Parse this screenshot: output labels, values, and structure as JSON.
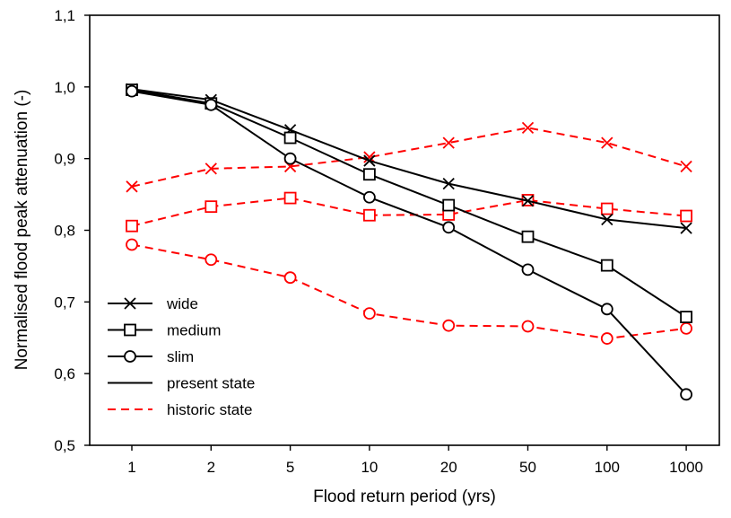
{
  "chart_data": {
    "type": "line",
    "xlabel": "Flood return period (yrs)",
    "ylabel": "Normalised flood peak attenuation (-)",
    "categories": [
      "1",
      "2",
      "5",
      "10",
      "20",
      "50",
      "100",
      "1000"
    ],
    "ylim": [
      0.5,
      1.1
    ],
    "yticks": [
      "0,5",
      "0,6",
      "0,7",
      "0,8",
      "0,9",
      "1,0",
      "1,1"
    ],
    "ytick_values": [
      0.5,
      0.6,
      0.7,
      0.8,
      0.9,
      1.0,
      1.1
    ],
    "grid": false,
    "legend_position": "bottom-left",
    "legend": [
      {
        "label": "wide",
        "marker": "x",
        "style": "marker"
      },
      {
        "label": "medium",
        "marker": "square",
        "style": "marker"
      },
      {
        "label": "slim",
        "marker": "circle",
        "style": "marker"
      },
      {
        "label": "present state",
        "marker": "none",
        "style": "solid"
      },
      {
        "label": "historic state",
        "marker": "none",
        "style": "dashed"
      }
    ],
    "colors": {
      "present": "#000000",
      "historic": "#ff0000"
    },
    "series": [
      {
        "width": "wide",
        "state": "present",
        "marker": "x",
        "values": [
          0.997,
          0.982,
          0.94,
          0.897,
          0.865,
          0.841,
          0.815,
          0.803
        ]
      },
      {
        "width": "medium",
        "state": "present",
        "marker": "square",
        "values": [
          0.996,
          0.977,
          0.929,
          0.878,
          0.835,
          0.791,
          0.751,
          0.679
        ]
      },
      {
        "width": "slim",
        "state": "present",
        "marker": "circle",
        "values": [
          0.994,
          0.975,
          0.9,
          0.846,
          0.804,
          0.745,
          0.69,
          0.571
        ]
      },
      {
        "width": "wide",
        "state": "historic",
        "marker": "x",
        "values": [
          0.861,
          0.886,
          0.889,
          0.902,
          0.922,
          0.943,
          0.922,
          0.889
        ]
      },
      {
        "width": "medium",
        "state": "historic",
        "marker": "square",
        "values": [
          0.806,
          0.833,
          0.845,
          0.821,
          0.822,
          0.842,
          0.83,
          0.82
        ]
      },
      {
        "width": "slim",
        "state": "historic",
        "marker": "circle",
        "values": [
          0.78,
          0.759,
          0.734,
          0.684,
          0.667,
          0.666,
          0.649,
          0.663
        ]
      }
    ]
  }
}
